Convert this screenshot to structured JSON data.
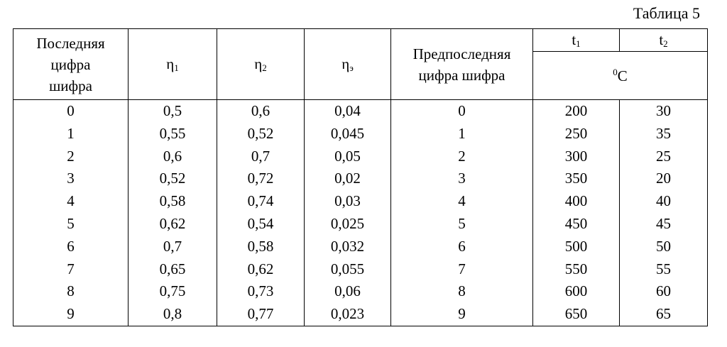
{
  "caption": "Таблица 5",
  "header": {
    "last_digit": "Последняя цифра шифра",
    "eta1": {
      "base": "η",
      "sub": "1"
    },
    "eta2": {
      "base": "η",
      "sub": "2"
    },
    "eta3": {
      "base": "η",
      "sub": "э"
    },
    "prev_digit": "Предпоследняя цифра шифра",
    "t1": {
      "base": "t",
      "sub": "1"
    },
    "t2": {
      "base": "t",
      "sub": "2"
    },
    "unit": {
      "sup": "0",
      "base": "C"
    }
  },
  "table": {
    "rows": [
      [
        "0",
        "0,5",
        "0,6",
        "0,04",
        "0",
        "200",
        "30"
      ],
      [
        "1",
        "0,55",
        "0,52",
        "0,045",
        "1",
        "250",
        "35"
      ],
      [
        "2",
        "0,6",
        "0,7",
        "0,05",
        "2",
        "300",
        "25"
      ],
      [
        "3",
        "0,52",
        "0,72",
        "0,02",
        "3",
        "350",
        "20"
      ],
      [
        "4",
        "0,58",
        "0,74",
        "0,03",
        "4",
        "400",
        "40"
      ],
      [
        "5",
        "0,62",
        "0,54",
        "0,025",
        "5",
        "450",
        "45"
      ],
      [
        "6",
        "0,7",
        "0,58",
        "0,032",
        "6",
        "500",
        "50"
      ],
      [
        "7",
        "0,65",
        "0,62",
        "0,055",
        "7",
        "550",
        "55"
      ],
      [
        "8",
        "0,75",
        "0,73",
        "0,06",
        "8",
        "600",
        "60"
      ],
      [
        "9",
        "0,8",
        "0,77",
        "0,023",
        "9",
        "650",
        "65"
      ]
    ]
  }
}
